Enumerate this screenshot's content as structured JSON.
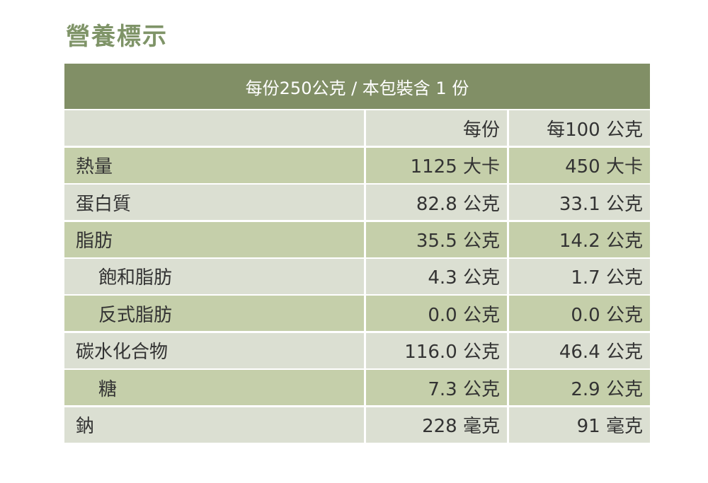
{
  "title": "營養標示",
  "serving": "每份250公克 / 本包裝含 1 份",
  "columns": [
    "",
    "每份",
    "每100 公克"
  ],
  "rows": [
    {
      "name": "熱量",
      "per_serving": "1125 大卡",
      "per_100g": "450 大卡",
      "indent": false
    },
    {
      "name": "蛋白質",
      "per_serving": "82.8 公克",
      "per_100g": "33.1 公克",
      "indent": false
    },
    {
      "name": "脂肪",
      "per_serving": "35.5 公克",
      "per_100g": "14.2 公克",
      "indent": false
    },
    {
      "name": "飽和脂肪",
      "per_serving": "4.3 公克",
      "per_100g": "1.7 公克",
      "indent": true
    },
    {
      "name": "反式脂肪",
      "per_serving": "0.0 公克",
      "per_100g": "0.0 公克",
      "indent": true
    },
    {
      "name": "碳水化合物",
      "per_serving": "116.0 公克",
      "per_100g": "46.4 公克",
      "indent": false
    },
    {
      "name": "糖",
      "per_serving": "7.3 公克",
      "per_100g": "2.9 公克",
      "indent": true
    },
    {
      "name": "鈉",
      "per_serving": "228 毫克",
      "per_100g": "91 毫克",
      "indent": false
    }
  ],
  "colors": {
    "header": "#818f66",
    "title": "#7f9468",
    "row_light": "#dbdfd2",
    "row_green": "#c5cfaa"
  }
}
